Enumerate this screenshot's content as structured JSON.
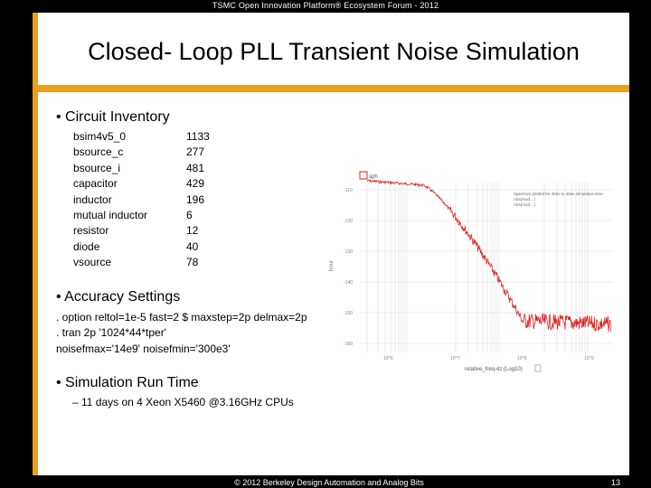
{
  "header": {
    "text": "TSMC Open Innovation Platform® Ecosystem Forum - 2012"
  },
  "title": "Closed- Loop PLL Transient Noise Simulation",
  "sections": {
    "inventory": {
      "heading": "• Circuit Inventory",
      "items": [
        {
          "name": "bsim4v5_0",
          "count": "1133"
        },
        {
          "name": "bsource_c",
          "count": "277"
        },
        {
          "name": "bsource_i",
          "count": "481"
        },
        {
          "name": "capacitor",
          "count": "429"
        },
        {
          "name": "inductor",
          "count": "196"
        },
        {
          "name": "mutual inductor",
          "count": "6"
        },
        {
          "name": "resistor",
          "count": "12"
        },
        {
          "name": "diode",
          "count": "40"
        },
        {
          "name": "vsource",
          "count": "78"
        }
      ]
    },
    "accuracy": {
      "heading": "• Accuracy Settings",
      "lines": [
        ". option reltol=1e-5 fast=2 $ maxstep=2p delmax=2p",
        ". tran 2p '1024*44*tper'",
        "noisefmax='14e9' noisefmin='300e3'"
      ]
    },
    "runtime": {
      "heading": "• Simulation Run Time",
      "sub": "– 11 days on 4 Xeon X5460 @3.16GHz CPUs"
    }
  },
  "plot": {
    "legend_label": "sph",
    "annotation": [
      "Spectrum plotted for 40ns to 40us simulation time",
      "Abs(mod…)",
      "Abs(mod…)"
    ],
    "ylabel": "hour",
    "xlabel": "relative_freq-4z (Log10)",
    "yticks": [
      "-110",
      "-120",
      "-130",
      "-140",
      "-150",
      "-160"
    ],
    "xticks": [
      "10^6",
      "10^7",
      "10^8",
      "10^9"
    ],
    "trace_color": "#e02020"
  },
  "footer": {
    "text": "© 2012 Berkeley Design Automation and Analog Bits",
    "page": "13"
  }
}
